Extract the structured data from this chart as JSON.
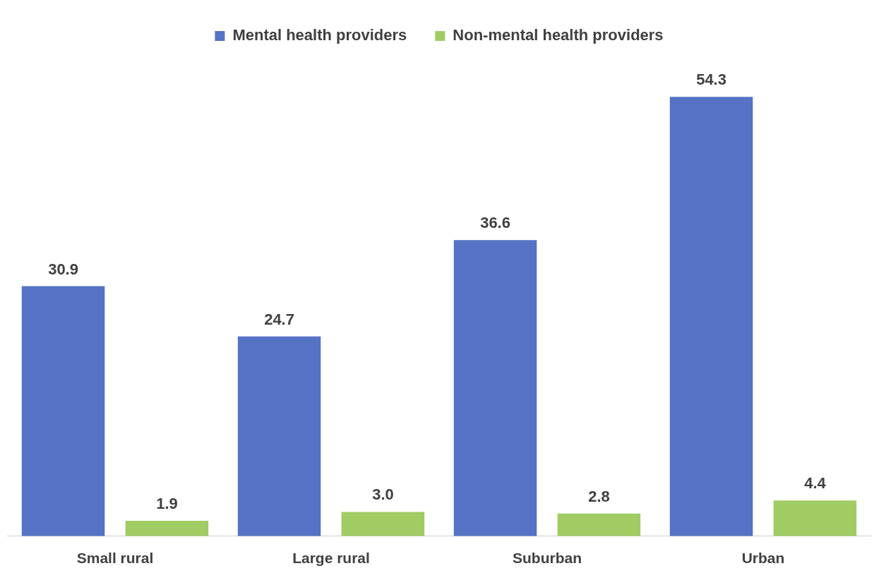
{
  "chart_data": {
    "type": "bar",
    "categories": [
      "Small rural",
      "Large rural",
      "Suburban",
      "Urban"
    ],
    "series": [
      {
        "name": "Mental health providers",
        "color": "#5572c4",
        "values": [
          30.9,
          24.7,
          36.6,
          54.3
        ],
        "value_labels": [
          "30.9",
          "24.7",
          "36.6",
          "54.3"
        ]
      },
      {
        "name": "Non-mental health providers",
        "color": "#a0cc63",
        "values": [
          1.9,
          3.0,
          2.8,
          4.4
        ],
        "value_labels": [
          "1.9",
          "3.0",
          "2.8",
          "4.4"
        ]
      }
    ],
    "legend": "top",
    "grid": false,
    "tick_labels": "x"
  }
}
